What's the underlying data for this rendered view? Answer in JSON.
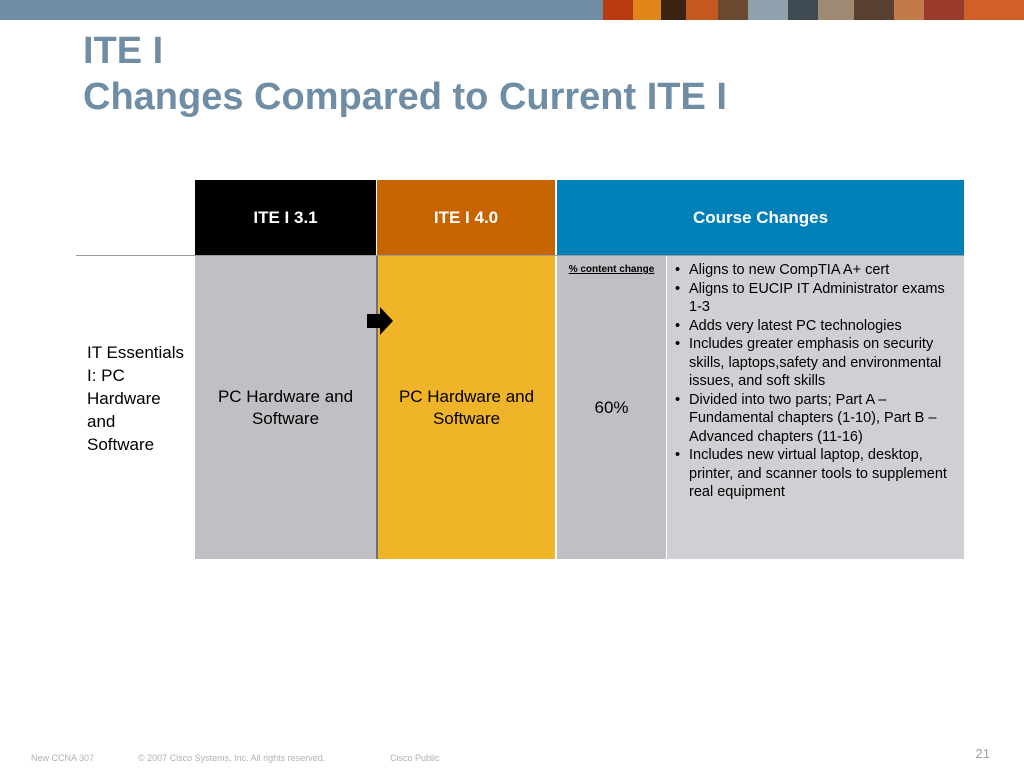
{
  "title": {
    "line1": "ITE I",
    "line2": "Changes Compared to Current ITE I"
  },
  "table": {
    "headers": {
      "old": "ITE I 3.1",
      "new": "ITE I 4.0",
      "changes": "Course Changes"
    },
    "row_label": "IT Essentials I: PC Hardware and Software",
    "old_course": "PC Hardware and Software",
    "new_course": "PC Hardware and Software",
    "percent_label": "% content change",
    "percent_value": "60%",
    "changes": [
      "Aligns to new CompTIA A+ cert",
      "Aligns to EUCIP IT Administrator exams 1-3",
      "Adds very latest PC technologies",
      "Includes greater emphasis on security skills, laptops,safety and environmental issues, and soft skills",
      "Divided into two parts; Part A – Fundamental chapters (1-10), Part B – Advanced chapters (11-16)",
      "Includes new virtual laptop, desktop, printer, and scanner tools to supplement real equipment"
    ]
  },
  "footer": {
    "left": "New CCNA 307",
    "copyright": "© 2007 Cisco Systems, Inc. All rights reserved.",
    "classification": "Cisco Public",
    "page": "21"
  },
  "colors": {
    "title": "#6f8da4",
    "header_old": "#000000",
    "header_new": "#c86400",
    "header_changes": "#0080b8",
    "cell_gray": "#c0c0c4",
    "cell_yellow": "#f0b428",
    "cell_light": "#d0d0d4"
  },
  "icons": {
    "arrow": "right-arrow-icon"
  }
}
